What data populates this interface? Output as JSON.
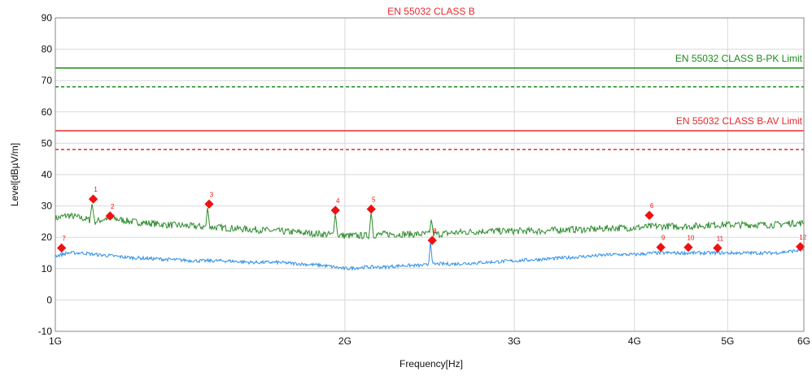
{
  "chart_data": {
    "type": "line",
    "title": "EN 55032 CLASS B",
    "xlabel": "Frequency[Hz]",
    "ylabel": "Level[dBµV/m]",
    "x_scale": "log",
    "xlim": [
      1000000000,
      6000000000
    ],
    "ylim": [
      -10,
      90
    ],
    "x_ticks": [
      {
        "value": 1000000000,
        "label": "1G"
      },
      {
        "value": 2000000000,
        "label": "2G"
      },
      {
        "value": 3000000000,
        "label": "3G"
      },
      {
        "value": 4000000000,
        "label": "4G"
      },
      {
        "value": 5000000000,
        "label": "5G"
      },
      {
        "value": 6000000000,
        "label": "6G"
      }
    ],
    "y_ticks": [
      -10,
      0,
      10,
      20,
      30,
      40,
      50,
      60,
      70,
      80,
      90
    ],
    "grid": true,
    "colors": {
      "pk_limit": "#1a8a1a",
      "av_limit": "#e8282d",
      "pk_trace": "#2e8b2e",
      "av_trace": "#2f8fe6",
      "marker": "#ee1111",
      "title": "#e8282d"
    },
    "limit_lines": [
      {
        "label": "EN 55032 CLASS B-PK Limit",
        "value": 74,
        "style": "solid",
        "color": "#1a8a1a",
        "labeled": true
      },
      {
        "label": "",
        "value": 68,
        "style": "dashed",
        "color": "#1a8a1a",
        "labeled": false
      },
      {
        "label": "EN 55032 CLASS B-AV Limit",
        "value": 54,
        "style": "solid",
        "color": "#e8282d",
        "labeled": true
      },
      {
        "label": "",
        "value": 48,
        "style": "dashed",
        "color": "#e8282d",
        "labeled": false
      }
    ],
    "series": [
      {
        "color": "#2e8b2e",
        "x": [
          1000000000.0,
          1030000000.0,
          1070000000.0,
          1100000000.0,
          1130000000.0,
          1150000000.0,
          1200000000.0,
          1300000000.0,
          1400000000.0,
          1500000000.0,
          1600000000.0,
          1700000000.0,
          1800000000.0,
          1900000000.0,
          2000000000.0,
          2100000000.0,
          2200000000.0,
          2300000000.0,
          2400000000.0,
          2500000000.0,
          2600000000.0,
          2800000000.0,
          3000000000.0,
          3200000000.0,
          3400000000.0,
          3600000000.0,
          3800000000.0,
          4000000000.0,
          4200000000.0,
          4400000000.0,
          4600000000.0,
          4800000000.0,
          5000000000.0,
          5200000000.0,
          5400000000.0,
          5600000000.0,
          5800000000.0,
          6000000000.0
        ],
        "values": [
          26,
          27,
          26,
          25,
          26,
          26,
          25,
          24,
          23.5,
          23,
          22.5,
          22,
          21.5,
          21,
          20.5,
          20.5,
          21,
          21,
          21,
          21,
          21.5,
          22,
          22,
          22,
          22.5,
          22.5,
          23,
          23,
          23.5,
          23.5,
          23.5,
          24,
          24,
          24,
          24,
          24,
          24.5,
          24.5
        ]
      },
      {
        "color": "#2f8fe6",
        "x": [
          1000000000.0,
          1030000000.0,
          1070000000.0,
          1100000000.0,
          1150000000.0,
          1200000000.0,
          1300000000.0,
          1400000000.0,
          1500000000.0,
          1600000000.0,
          1700000000.0,
          1800000000.0,
          1900000000.0,
          2000000000.0,
          2100000000.0,
          2200000000.0,
          2300000000.0,
          2400000000.0,
          2500000000.0,
          2600000000.0,
          2800000000.0,
          3000000000.0,
          3200000000.0,
          3400000000.0,
          3600000000.0,
          3800000000.0,
          4000000000.0,
          4200000000.0,
          4400000000.0,
          4600000000.0,
          4800000000.0,
          5000000000.0,
          5200000000.0,
          5400000000.0,
          5600000000.0,
          5800000000.0,
          6000000000.0
        ],
        "values": [
          14,
          15,
          15,
          14.5,
          14,
          13.5,
          13,
          12.5,
          12.5,
          12,
          12,
          11.5,
          11,
          10,
          10.5,
          10.5,
          11,
          11,
          11.5,
          11.5,
          12,
          12.5,
          13,
          13.5,
          14,
          14.5,
          14.5,
          15,
          15,
          15,
          15,
          15,
          15,
          15,
          15,
          15.5,
          16
        ]
      }
    ],
    "spikes": [
      {
        "series": 0,
        "x": 1092000000.0,
        "base": 26,
        "peak": 31
      },
      {
        "series": 0,
        "x": 1440000000.0,
        "base": 23,
        "peak": 30
      },
      {
        "series": 0,
        "x": 1955000000.0,
        "base": 21,
        "peak": 28
      },
      {
        "series": 0,
        "x": 2130000000.0,
        "base": 21,
        "peak": 28.5
      },
      {
        "series": 0,
        "x": 2460000000.0,
        "base": 21,
        "peak": 26
      },
      {
        "series": 1,
        "x": 2455000000.0,
        "base": 11,
        "peak": 19
      }
    ],
    "markers": [
      {
        "label": "1",
        "x": 1095000000.0,
        "y": 32.2
      },
      {
        "label": "2",
        "x": 1140000000.0,
        "y": 26.8
      },
      {
        "label": "3",
        "x": 1445000000.0,
        "y": 30.6
      },
      {
        "label": "4",
        "x": 1955000000.0,
        "y": 28.6
      },
      {
        "label": "5",
        "x": 2130000000.0,
        "y": 29
      },
      {
        "label": "6",
        "x": 4145000000.0,
        "y": 27
      },
      {
        "label": "7",
        "x": 1015000000.0,
        "y": 16.6
      },
      {
        "label": "8",
        "x": 2465000000.0,
        "y": 19
      },
      {
        "label": "9",
        "x": 4260000000.0,
        "y": 16.8
      },
      {
        "label": "10",
        "x": 4550000000.0,
        "y": 16.8
      },
      {
        "label": "11",
        "x": 4880000000.0,
        "y": 16.6
      },
      {
        "label": "12",
        "x": 5950000000.0,
        "y": 17
      }
    ]
  }
}
